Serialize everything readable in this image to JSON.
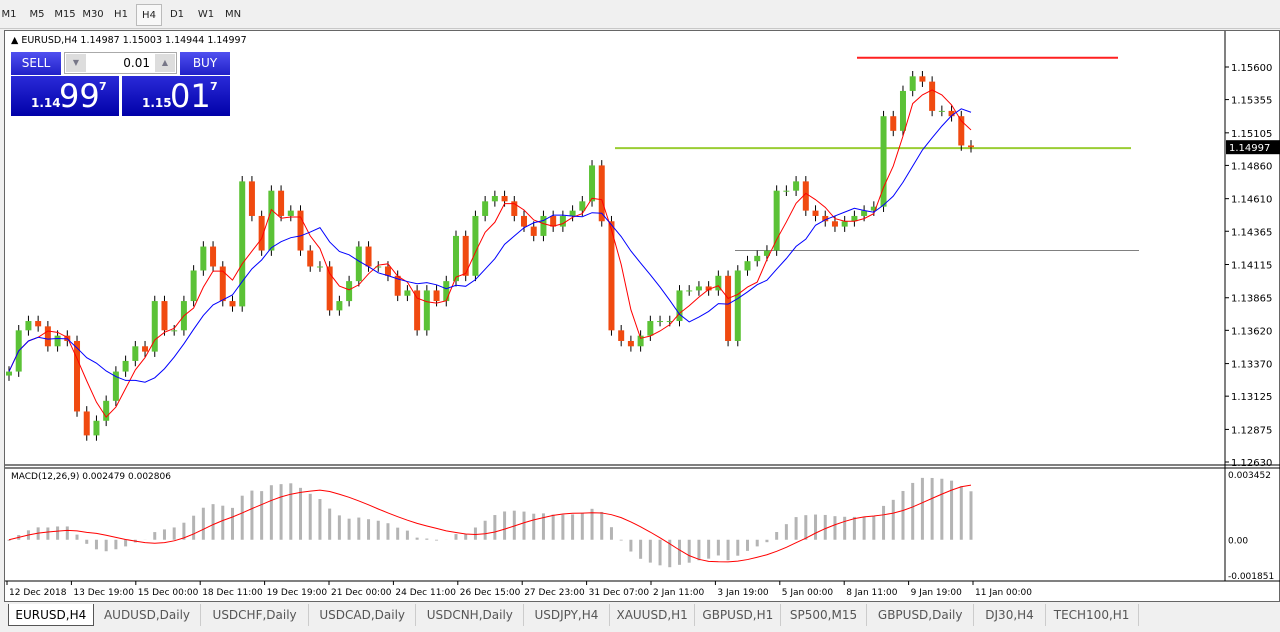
{
  "timeframes": [
    "M1",
    "M5",
    "M15",
    "M30",
    "H1",
    "H4",
    "D1",
    "W1",
    "MN"
  ],
  "active_timeframe": "H4",
  "chart_header": "EURUSD,H4  1.14987 1.15003 1.14944 1.14997",
  "trade_panel": {
    "sell_label": "SELL",
    "buy_label": "BUY",
    "lot": "0.01",
    "sell_prefix": "1.14",
    "sell_big": "99",
    "sell_pip": "7",
    "buy_prefix": "1.15",
    "buy_big": "01",
    "buy_pip": "7"
  },
  "chart_data": {
    "type": "candlestick",
    "symbol": "EURUSD",
    "timeframe": "H4",
    "price_ticks": [
      "1.15600",
      "1.15355",
      "1.15105",
      "1.14860",
      "1.14610",
      "1.14365",
      "1.14115",
      "1.13865",
      "1.13620",
      "1.13370",
      "1.13125",
      "1.12875",
      "1.12630"
    ],
    "price_range": [
      1.1263,
      1.156
    ],
    "current_price": "1.14997",
    "closes": [
      1.1331,
      1.1362,
      1.1369,
      1.1365,
      1.135,
      1.1358,
      1.1354,
      1.1301,
      1.1283,
      1.1294,
      1.1309,
      1.1331,
      1.1339,
      1.135,
      1.1346,
      1.1384,
      1.1362,
      1.1362,
      1.1384,
      1.1407,
      1.1425,
      1.141,
      1.1384,
      1.138,
      1.1474,
      1.1448,
      1.1422,
      1.1467,
      1.1448,
      1.1452,
      1.1422,
      1.141,
      1.141,
      1.1377,
      1.1384,
      1.1399,
      1.1425,
      1.141,
      1.141,
      1.1403,
      1.1388,
      1.1392,
      1.1362,
      1.1392,
      1.1384,
      1.1399,
      1.1433,
      1.1403,
      1.1448,
      1.1459,
      1.1463,
      1.1459,
      1.1448,
      1.144,
      1.1433,
      1.1448,
      1.144,
      1.1448,
      1.1452,
      1.1459,
      1.1486,
      1.1444,
      1.1362,
      1.1354,
      1.135,
      1.1358,
      1.1369,
      1.1369,
      1.1369,
      1.1392,
      1.1392,
      1.1395,
      1.1392,
      1.1403,
      1.1354,
      1.1407,
      1.1414,
      1.1418,
      1.1422,
      1.1467,
      1.1467,
      1.1474,
      1.1452,
      1.1448,
      1.1444,
      1.144,
      1.1444,
      1.1448,
      1.1452,
      1.1455,
      1.1523,
      1.1512,
      1.1542,
      1.1553,
      1.1549,
      1.1527,
      1.1527,
      1.1523,
      1.1501,
      1.14997
    ],
    "hlines": [
      {
        "price": 1.1567,
        "color": "#ff2020"
      },
      {
        "price": 1.1499,
        "color": "#9acd32"
      },
      {
        "price": 1.1422,
        "color": "#808080"
      }
    ],
    "ma_colors": {
      "fast": "#ff0000",
      "slow": "#0000ff"
    },
    "candle_colors": {
      "up": "#5bc236",
      "down": "#f04a10"
    },
    "x_labels": [
      "12 Dec 2018",
      "13 Dec 19:00",
      "15 Dec 00:00",
      "18 Dec 11:00",
      "19 Dec 19:00",
      "21 Dec 00:00",
      "24 Dec 11:00",
      "26 Dec 15:00",
      "27 Dec 23:00",
      "31 Dec 07:00",
      "2 Jan 11:00",
      "3 Jan 19:00",
      "5 Jan 00:00",
      "8 Jan 11:00",
      "9 Jan 19:00",
      "11 Jan 00:00"
    ],
    "macd": {
      "label": "MACD(12,26,9) 0.002479 0.002806",
      "ticks": [
        "0.003452",
        "0.00",
        "-0.001851"
      ],
      "range": [
        -0.001851,
        0.003452
      ]
    }
  },
  "symbol_tabs": [
    "EURUSD,H4",
    "AUDUSD,Daily",
    "USDCHF,Daily",
    "USDCAD,Daily",
    "USDCNH,Daily",
    "USDJPY,H4",
    "XAUUSD,H1",
    "GBPUSD,H1",
    "SP500,M15",
    "GBPUSD,Daily",
    "DJ30,H4",
    "TECH100,H1"
  ],
  "active_tab": "EURUSD,H4"
}
